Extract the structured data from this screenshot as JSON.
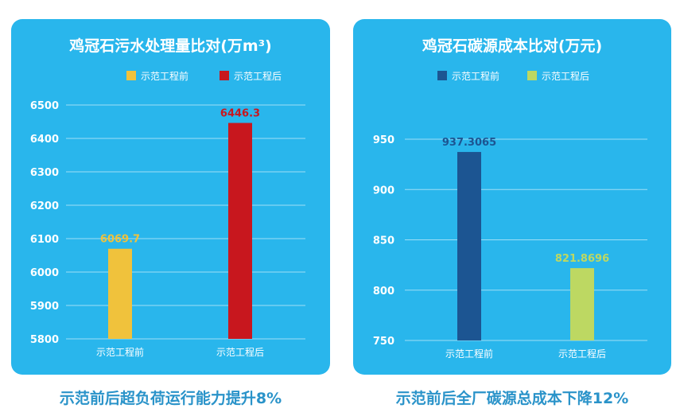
{
  "chart_data": [
    {
      "type": "bar",
      "title": "鸡冠石污水处理量比对(万m³)",
      "categories": [
        "示范工程前",
        "示范工程后"
      ],
      "series": [
        {
          "name": "示范工程前",
          "values": [
            6069.7,
            null
          ]
        },
        {
          "name": "示范工程后",
          "values": [
            null,
            6446.3
          ]
        }
      ],
      "data_labels": [
        "6069.7",
        "6446.3"
      ],
      "ylim": [
        5800,
        6500
      ],
      "yticks": [
        5800,
        5900,
        6000,
        6100,
        6200,
        6300,
        6400,
        6500
      ],
      "grid": true,
      "legend": "top",
      "colors": {
        "bars": [
          "#f0c23c",
          "#c8171e"
        ],
        "labels": [
          "#f0c23c",
          "#c8171e"
        ]
      }
    },
    {
      "type": "bar",
      "title": "鸡冠石碳源成本比对(万元)",
      "categories": [
        "示范工程前",
        "示范工程后"
      ],
      "series": [
        {
          "name": "示范工程前",
          "values": [
            937.3065,
            null
          ]
        },
        {
          "name": "示范工程后",
          "values": [
            null,
            821.8696
          ]
        }
      ],
      "data_labels": [
        "937.3065",
        "821.8696"
      ],
      "ylim": [
        750,
        950
      ],
      "yticks": [
        750,
        800,
        850,
        900,
        950
      ],
      "grid": true,
      "legend": "top",
      "colors": {
        "bars": [
          "#1c5592",
          "#bdd862"
        ],
        "labels": [
          "#1c5592",
          "#bdd862"
        ]
      }
    }
  ],
  "captions": {
    "left": "示范前后超负荷运行能力提升8%",
    "right": "示范前后全厂碳源总成本下降12%"
  },
  "colors": {
    "panel": "#29b6ec",
    "caption": "#2a93c9",
    "text": "#ffffff"
  }
}
